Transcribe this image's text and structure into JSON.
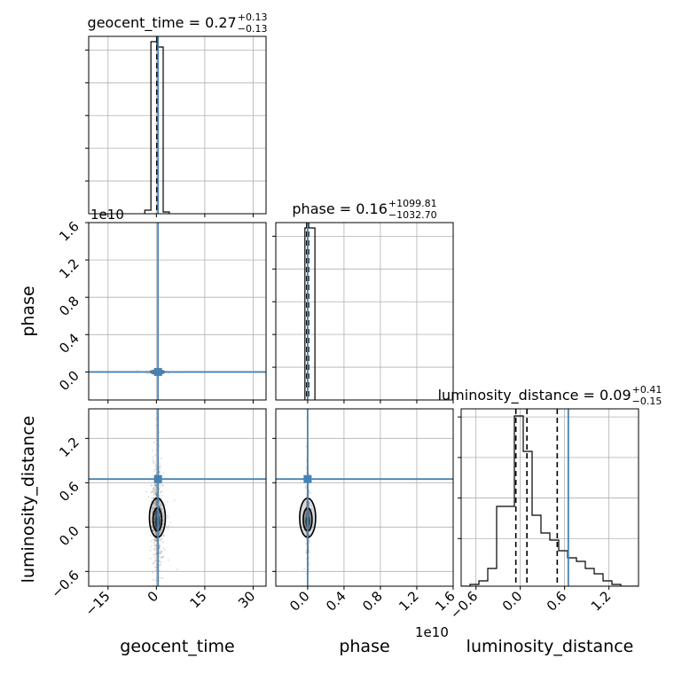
{
  "chart_data": {
    "type": "corner",
    "parameters": [
      {
        "name": "geocent_time",
        "axis_label": "geocent_time",
        "title_prefix": "geocent_time = ",
        "median": "0.27",
        "plus": "+0.13",
        "minus": "−0.13",
        "xlim": [
          -21,
          34
        ],
        "ticks": [
          -15,
          0,
          15,
          30
        ],
        "tick_labels": [
          "−15",
          "0",
          "15",
          "30"
        ],
        "injection": 0.5,
        "quantiles": [
          0.14,
          0.27,
          0.4
        ],
        "hist_edges": [
          -3.6,
          -1.7,
          0.2,
          2.1,
          4.0
        ],
        "hist_values": [
          0.02,
          0.97,
          0.94,
          0.01
        ]
      },
      {
        "name": "phase",
        "axis_label": "phase",
        "title_prefix": "phase = ",
        "median": "0.16",
        "plus": "+1099.81",
        "minus": "−1032.70",
        "offset_label": "1e10",
        "xlim": [
          -0.35,
          1.6
        ],
        "ticks": [
          0.0,
          0.4,
          0.8,
          1.2,
          1.6
        ],
        "tick_labels": [
          "0.0",
          "0.4",
          "0.8",
          "1.2",
          "1.6"
        ],
        "ylim": [
          -0.3,
          1.6
        ],
        "yticks": [
          0.0,
          0.4,
          0.8,
          1.2,
          1.6
        ],
        "injection": 0.0,
        "quantiles": [
          -0.01,
          0.0,
          0.01
        ],
        "hist_edges": [
          -0.03,
          0.01,
          0.08
        ],
        "hist_values": [
          0.97,
          0.97
        ]
      },
      {
        "name": "luminosity_distance",
        "axis_label": "luminosity_distance",
        "title_prefix": "luminosity_distance = ",
        "median": "0.09",
        "plus": "+0.41",
        "minus": "−0.15",
        "xlim": [
          -0.8,
          1.6
        ],
        "ticks": [
          -0.6,
          0.0,
          0.6,
          1.2
        ],
        "tick_labels": [
          "−0.6",
          "0.0",
          "0.6",
          "1.2"
        ],
        "yticks": [
          -0.6,
          0.0,
          0.6,
          1.2
        ],
        "injection": 0.65,
        "quantiles": [
          -0.06,
          0.09,
          0.5
        ],
        "hist_edges": [
          -0.8,
          -0.68,
          -0.56,
          -0.44,
          -0.32,
          -0.2,
          -0.08,
          0.04,
          0.16,
          0.28,
          0.4,
          0.52,
          0.64,
          0.76,
          0.88,
          1.0,
          1.12,
          1.24,
          1.36,
          1.48,
          1.6
        ],
        "hist_values": [
          0.0,
          0.01,
          0.03,
          0.1,
          0.45,
          0.45,
          0.96,
          0.76,
          0.4,
          0.3,
          0.26,
          0.2,
          0.16,
          0.14,
          0.1,
          0.07,
          0.03,
          0.01,
          0.0,
          0.0
        ]
      }
    ],
    "truth_color": "#4682b4",
    "line_color": "#000000",
    "grid": true
  }
}
